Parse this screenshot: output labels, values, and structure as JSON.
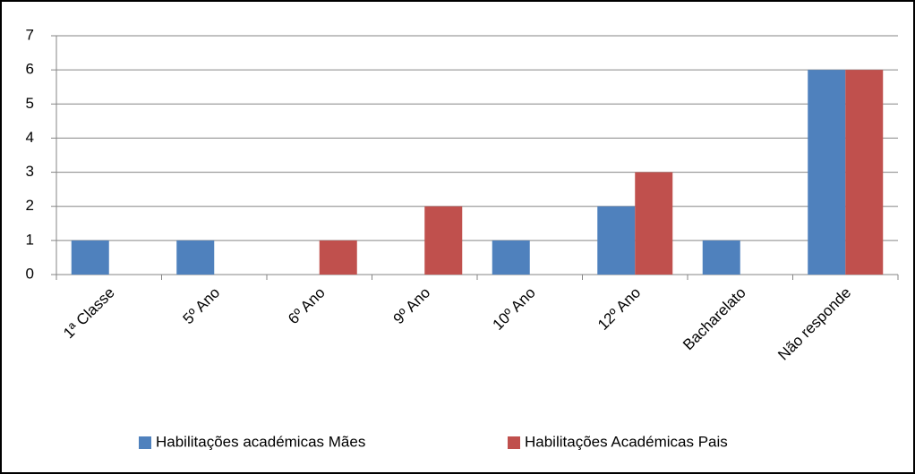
{
  "chart_data": {
    "type": "bar",
    "categories": [
      "1ª Classe",
      "5º Ano",
      "6º Ano",
      "9º Ano",
      "10º Ano",
      "12º Ano",
      "Bacharelato",
      "Não responde"
    ],
    "series": [
      {
        "name": "Habilitações académicas Mães",
        "color": "#4f81bd",
        "values": [
          1,
          1,
          0,
          0,
          1,
          2,
          1,
          6
        ]
      },
      {
        "name": "Habilitações Académicas Pais",
        "color": "#c0504d",
        "values": [
          0,
          0,
          1,
          2,
          0,
          3,
          0,
          6
        ]
      }
    ],
    "ylim": [
      0,
      7
    ],
    "yticks": [
      0,
      1,
      2,
      3,
      4,
      5,
      6,
      7
    ],
    "grid": true,
    "legend": "bottom"
  }
}
